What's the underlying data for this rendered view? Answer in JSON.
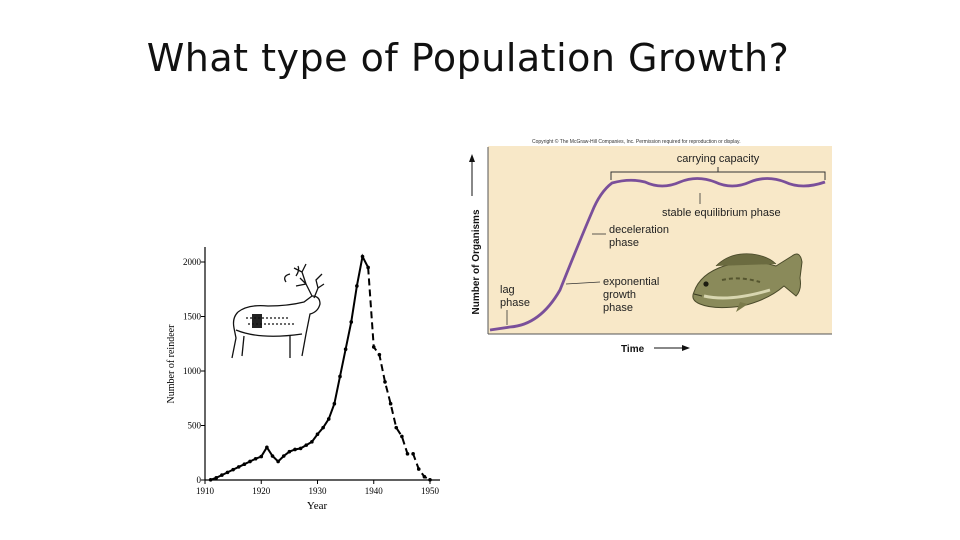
{
  "slide": {
    "title": "What type of Population Growth?"
  },
  "reindeer_chart": {
    "ylabel": "Number of reindeer",
    "xlabel": "Year",
    "y_ticks": [
      "0",
      "500",
      "1000",
      "1500",
      "2000"
    ],
    "x_ticks": [
      "1910",
      "1920",
      "1930",
      "1940",
      "1950"
    ],
    "icon": "reindeer-icon"
  },
  "logistic_diagram": {
    "copyright": "Copyright © The McGraw-Hill Companies, Inc. Permission required for reproduction or display.",
    "ylabel": "Number of Organisms",
    "xlabel": "Time",
    "labels": {
      "carrying_capacity": "carrying capacity",
      "stable": "stable equilibrium phase",
      "deceleration_1": "deceleration",
      "deceleration_2": "phase",
      "exponential_1": "exponential",
      "exponential_2": "growth",
      "exponential_3": "phase",
      "lag_1": "lag",
      "lag_2": "phase"
    },
    "background": "#f8e8c8",
    "curve_color": "#7a4f9a",
    "icon": "fish-icon"
  },
  "chart_data": [
    {
      "type": "line",
      "xlabel": "Year",
      "ylabel": "Number of reindeer",
      "xlim": [
        1910,
        1950
      ],
      "ylim": [
        0,
        2000
      ],
      "x": [
        1911,
        1912,
        1913,
        1914,
        1915,
        1916,
        1917,
        1918,
        1919,
        1920,
        1921,
        1922,
        1923,
        1924,
        1925,
        1926,
        1927,
        1928,
        1929,
        1930,
        1931,
        1932,
        1933,
        1934,
        1935,
        1936,
        1937,
        1938,
        1939,
        1940,
        1941,
        1942,
        1943,
        1944,
        1945,
        1946,
        1947,
        1948,
        1949,
        1950
      ],
      "values": [
        2,
        20,
        45,
        70,
        95,
        120,
        145,
        170,
        195,
        215,
        300,
        220,
        170,
        220,
        260,
        280,
        290,
        320,
        350,
        420,
        480,
        560,
        700,
        950,
        1200,
        1450,
        1780,
        2050,
        1950,
        1220,
        1150,
        900,
        700,
        480,
        400,
        240,
        240,
        100,
        30,
        2
      ]
    }
  ]
}
